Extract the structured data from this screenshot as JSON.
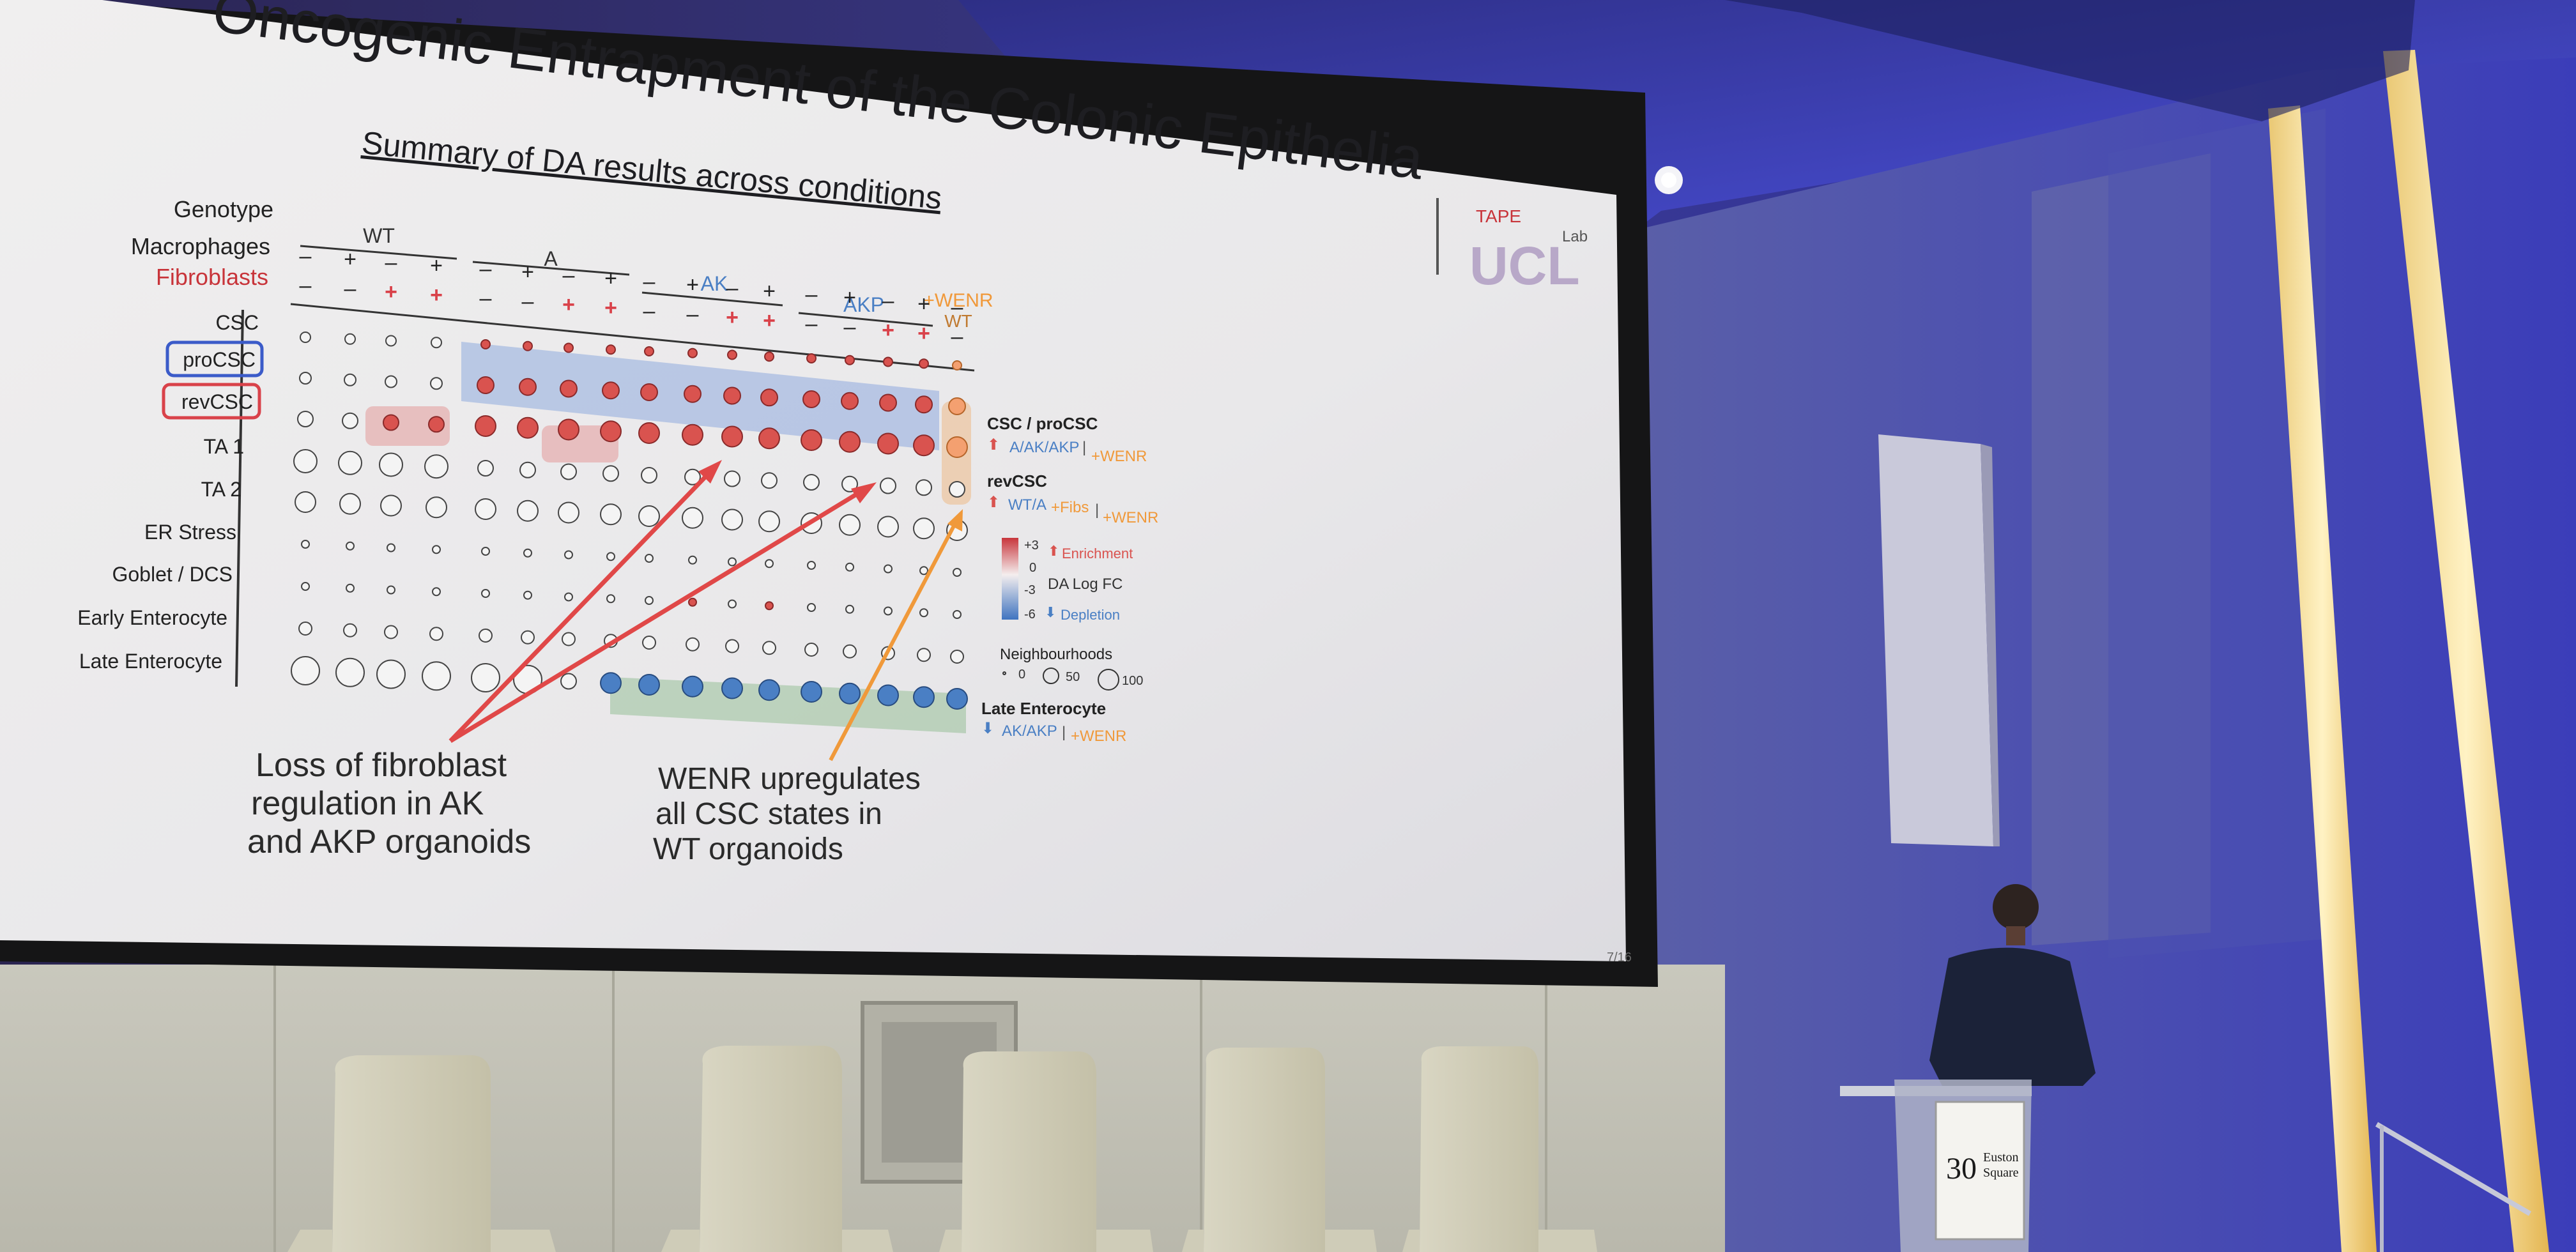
{
  "slide": {
    "title": "Oncogenic Entrapment of the Colonic Epithelia",
    "subtitle": "Summary of DA results across conditions",
    "logo_lab": "Lab",
    "logo_main": "UCL",
    "logo_tape": "TAPE",
    "page_number": "7/16",
    "row_header_labels": [
      "Genotype",
      "Macrophages",
      "Fibroblasts"
    ],
    "row_labels": [
      "CSC",
      "proCSC",
      "revCSC",
      "TA 1",
      "TA 2",
      "ER Stress",
      "Goblet / DCS",
      "Early Enterocyte",
      "Late Enterocyte"
    ],
    "genotype_groups": [
      "WT",
      "A",
      "AK",
      "AKP",
      "+WENR"
    ],
    "wenr_sub": "WT",
    "macrophage_signs": [
      "–",
      "+",
      "–",
      "+",
      "–",
      "+",
      "–",
      "+",
      "–",
      "+",
      "–",
      "+",
      "–",
      "+",
      "–",
      "+",
      "–"
    ],
    "fibroblast_signs": [
      "–",
      "–",
      "+",
      "+",
      "–",
      "–",
      "+",
      "+",
      "–",
      "–",
      "+",
      "+",
      "–",
      "–",
      "+",
      "+",
      "–"
    ],
    "annotations": {
      "left_lines": [
        "Loss of fibroblast",
        "regulation in AK",
        "and AKP organoids"
      ],
      "right_lines": [
        "WENR upregulates",
        "all CSC states in",
        "WT organoids"
      ]
    },
    "legend": {
      "csc_title": "CSC / proCSC",
      "csc_up_prefix": "A/AK/AKP",
      "csc_up_suffix": "+WENR",
      "rev_title": "revCSC",
      "rev_up_prefix": "WT/A",
      "rev_up_mid": "+Fibs",
      "rev_up_suffix": "+WENR",
      "scale_top": "+3",
      "scale_zero": "0",
      "scale_neg3": "-3",
      "scale_bottom": "-6",
      "enrichment_label": "Enrichment",
      "depletion_label": "Depletion",
      "scale_title": "DA Log FC",
      "neighbourhoods_title": "Neighbourhoods",
      "nbh_values": [
        "0",
        "50",
        "100"
      ],
      "late_title": "Late Enterocyte",
      "late_down_prefix": "AK/AKP",
      "late_down_suffix": "+WENR"
    },
    "colors": {
      "enrich": "#d9534f",
      "deplete": "#4a7fc4",
      "wenr": "#f0993a",
      "pro_box": "#3b5bc9",
      "rev_box": "#d9424a"
    }
  },
  "venue": {
    "podium_number": "30",
    "podium_line1": "Euston",
    "podium_line2": "Square"
  }
}
